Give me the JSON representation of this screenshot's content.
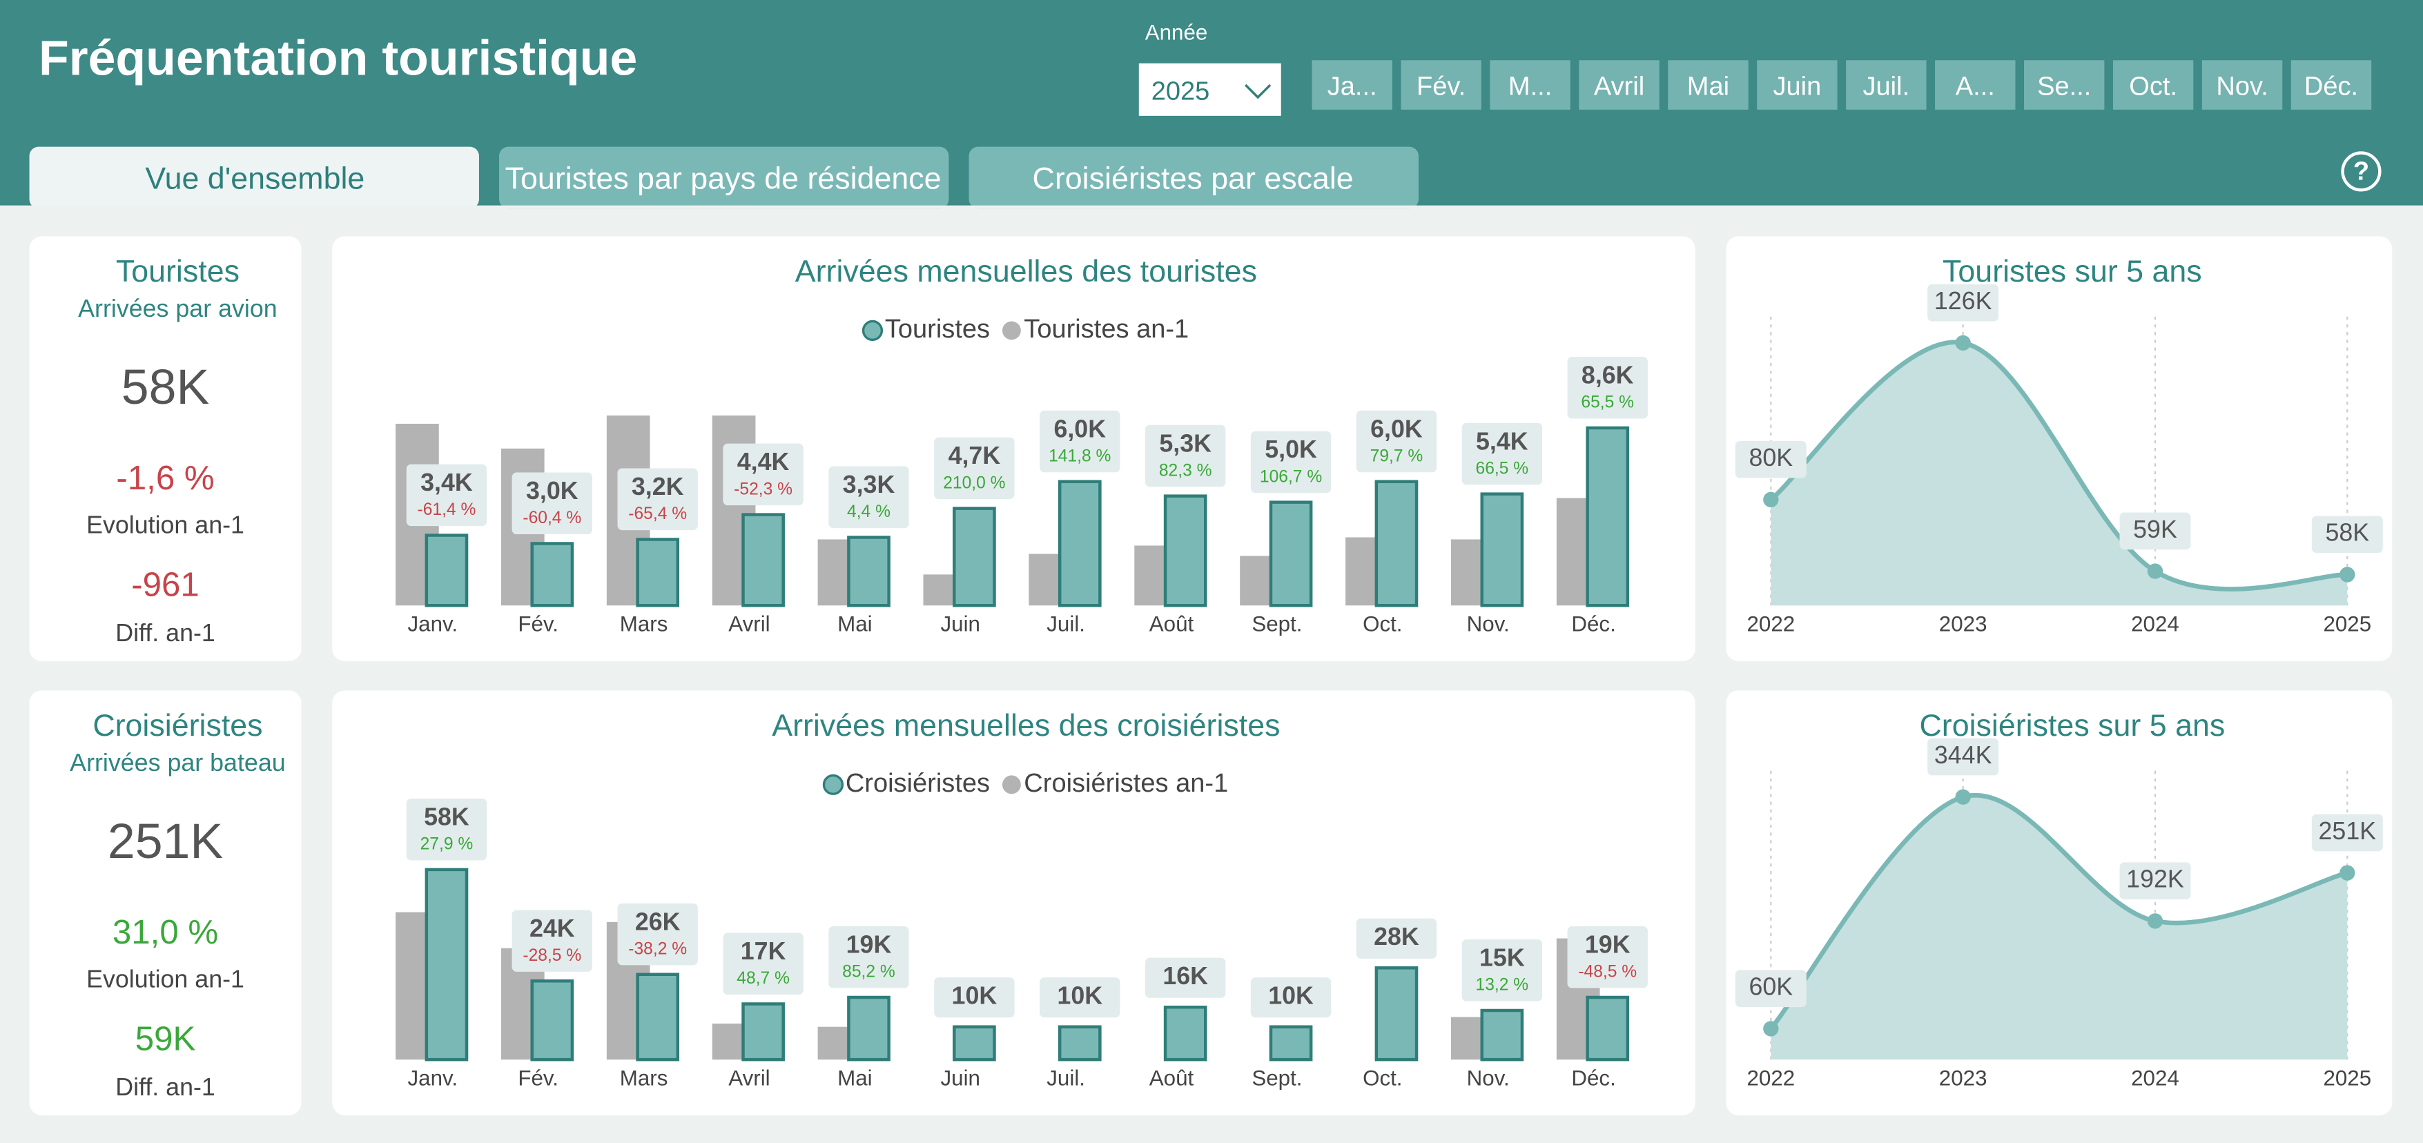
{
  "header": {
    "title": "Fréquentation touristique",
    "year_label": "Année",
    "year": "2025",
    "months": [
      "Ja...",
      "Fév.",
      "M...",
      "Avril",
      "Mai",
      "Juin",
      "Juil.",
      "A...",
      "Se...",
      "Oct.",
      "Nov.",
      "Déc."
    ]
  },
  "tabs": [
    "Vue d'ensemble",
    "Touristes par pays de résidence",
    "Croisiéristes par escale"
  ],
  "help": "?",
  "kpis": [
    {
      "title": "Touristes",
      "subtitle": "Arrivées par avion",
      "value": "58K",
      "evolution": "-1,6 %",
      "evolution_label": "Evolution an-1",
      "diff": "-961",
      "diff_label": "Diff. an-1"
    },
    {
      "title": "Croisiéristes",
      "subtitle": "Arrivées par bateau",
      "value": "251K",
      "evolution": "31,0 %",
      "evolution_label": "Evolution an-1",
      "diff": "59K",
      "diff_label": "Diff. an-1"
    }
  ],
  "chart_data": [
    {
      "type": "bar",
      "title": "Arrivées mensuelles des touristes",
      "categories": [
        "Janv.",
        "Fév.",
        "Mars",
        "Avril",
        "Mai",
        "Juin",
        "Juil.",
        "Août",
        "Sept.",
        "Oct.",
        "Nov.",
        "Déc."
      ],
      "series": [
        {
          "name": "Touristes",
          "color": "#7ab8b6",
          "values": [
            3400,
            3000,
            3200,
            4400,
            3300,
            4700,
            6000,
            5300,
            5000,
            6000,
            5400,
            8600
          ],
          "value_labels": [
            "3,4K",
            "3,0K",
            "3,2K",
            "4,4K",
            "3,3K",
            "4,7K",
            "6,0K",
            "5,3K",
            "5,0K",
            "6,0K",
            "5,4K",
            "8,6K"
          ],
          "evolution_labels": [
            "-61,4 %",
            "-60,4 %",
            "-65,4 %",
            "-52,3 %",
            "4,4 %",
            "210,0 %",
            "141,8 %",
            "82,3 %",
            "106,7 %",
            "79,7 %",
            "66,5 %",
            "65,5 %"
          ]
        },
        {
          "name": "Touristes an-1",
          "color": "#b3b3b3",
          "values": [
            8800,
            7600,
            9200,
            9200,
            3200,
            1500,
            2500,
            2900,
            2400,
            3300,
            3200,
            5200
          ]
        }
      ]
    },
    {
      "type": "line",
      "title": "Touristes sur 5 ans",
      "categories": [
        "2022",
        "2023",
        "2024",
        "2025"
      ],
      "values": [
        80000,
        126000,
        59000,
        58000
      ],
      "value_labels": [
        "80K",
        "126K",
        "59K",
        "58K"
      ],
      "color": "#7ab8b6"
    },
    {
      "type": "bar",
      "title": "Arrivées mensuelles des croisiéristes",
      "categories": [
        "Janv.",
        "Fév.",
        "Mars",
        "Avril",
        "Mai",
        "Juin",
        "Juil.",
        "Août",
        "Sept.",
        "Oct.",
        "Nov.",
        "Déc."
      ],
      "series": [
        {
          "name": "Croisiéristes",
          "color": "#7ab8b6",
          "values": [
            58000,
            24000,
            26000,
            17000,
            19000,
            10000,
            10000,
            16000,
            10000,
            28000,
            15000,
            19000
          ],
          "value_labels": [
            "58K",
            "24K",
            "26K",
            "17K",
            "19K",
            "10K",
            "10K",
            "16K",
            "10K",
            "28K",
            "15K",
            "19K"
          ],
          "evolution_labels": [
            "27,9 %",
            "-28,5 %",
            "-38,2 %",
            "48,7 %",
            "85,2 %",
            null,
            null,
            null,
            null,
            null,
            "13,2 %",
            "-48,5 %"
          ]
        },
        {
          "name": "Croisiéristes an-1",
          "color": "#b3b3b3",
          "values": [
            45000,
            34000,
            42000,
            11000,
            10000,
            null,
            null,
            null,
            null,
            null,
            13000,
            37000
          ]
        }
      ]
    },
    {
      "type": "line",
      "title": "Croisiéristes sur 5 ans",
      "categories": [
        "2022",
        "2023",
        "2024",
        "2025"
      ],
      "values": [
        60000,
        344000,
        192000,
        251000
      ],
      "value_labels": [
        "60K",
        "344K",
        "192K",
        "251K"
      ],
      "color": "#7ab8b6"
    }
  ]
}
